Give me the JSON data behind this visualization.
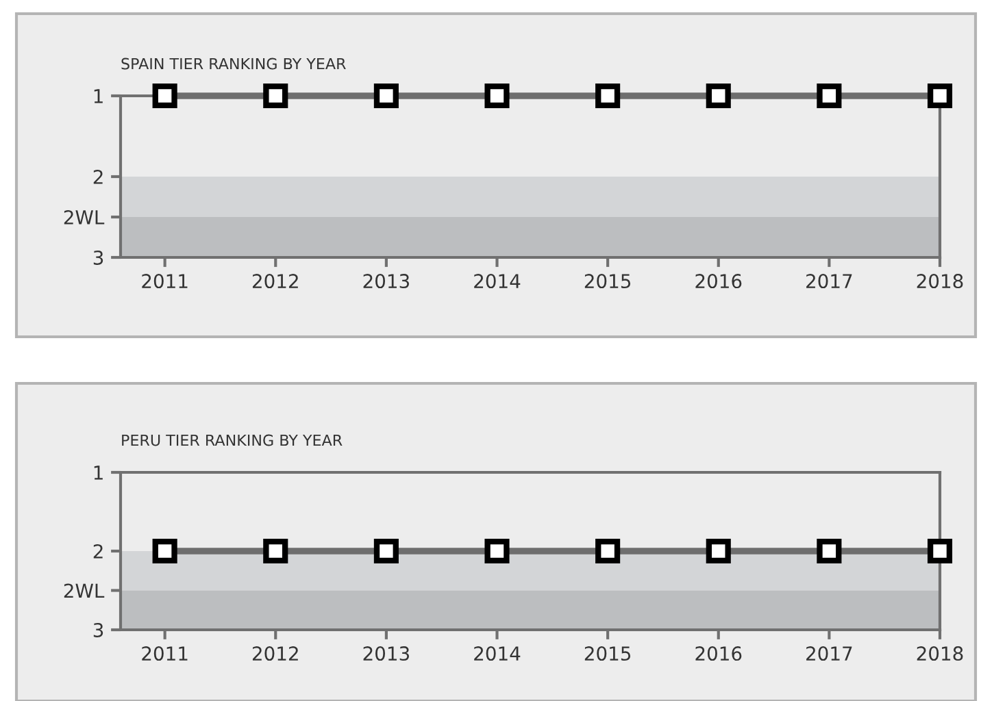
{
  "chart_data": [
    {
      "type": "line",
      "title": "SPAIN TIER RANKING BY YEAR",
      "x": [
        2011,
        2012,
        2013,
        2014,
        2015,
        2016,
        2017,
        2018
      ],
      "series": [
        {
          "color": "#6e6e6e",
          "values": [
            1,
            1,
            1,
            1,
            1,
            1,
            1,
            1
          ]
        }
      ],
      "marker": "square",
      "line_style": "solid",
      "xlim": [
        2010.6,
        2018
      ],
      "xticks": [
        2011,
        2012,
        2013,
        2014,
        2015,
        2016,
        2017,
        2018
      ],
      "ylim": [
        3,
        1
      ],
      "yticks": [
        1,
        2,
        {
          "value": 2.5,
          "label": "2WL"
        },
        3
      ],
      "grid": false,
      "legend": false,
      "bands": [
        {
          "axis": "y",
          "from": 2,
          "to": 2.5,
          "color": "#d3d5d7"
        },
        {
          "axis": "y",
          "from": 2.5,
          "to": 3,
          "color": "#bcbec0"
        }
      ]
    },
    {
      "type": "line",
      "title": "PERU TIER RANKING BY YEAR",
      "x": [
        2011,
        2012,
        2013,
        2014,
        2015,
        2016,
        2017,
        2018
      ],
      "series": [
        {
          "color": "#6e6e6e",
          "values": [
            2,
            2,
            2,
            2,
            2,
            2,
            2,
            2
          ]
        }
      ],
      "marker": "square",
      "line_style": "solid",
      "xlim": [
        2010.6,
        2018
      ],
      "xticks": [
        2011,
        2012,
        2013,
        2014,
        2015,
        2016,
        2017,
        2018
      ],
      "ylim": [
        3,
        1
      ],
      "yticks": [
        1,
        2,
        {
          "value": 2.5,
          "label": "2WL"
        },
        3
      ],
      "grid": false,
      "legend": false,
      "bands": [
        {
          "axis": "y",
          "from": 2,
          "to": 2.5,
          "color": "#d3d5d7"
        },
        {
          "axis": "y",
          "from": 2.5,
          "to": 3,
          "color": "#bcbec0"
        }
      ]
    }
  ]
}
